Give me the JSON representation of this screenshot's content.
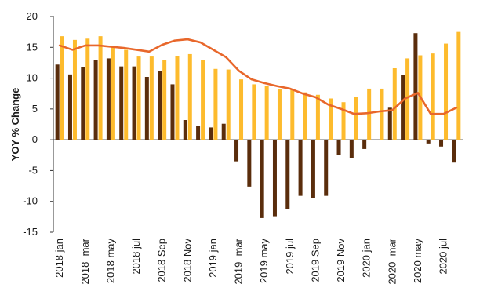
{
  "chart_data": {
    "type": "bar",
    "ylabel": "YOY % Change",
    "xlabel": "",
    "ylim": [
      -15,
      20
    ],
    "yticks": [
      -15,
      -10,
      -5,
      0,
      5,
      10,
      15,
      20
    ],
    "grid": false,
    "legend": "none",
    "categories": [
      "2018 jan",
      "2018 feb",
      "2018 mar",
      "2018 apr",
      "2018 may",
      "2018 jun",
      "2018 jul",
      "2018 aug",
      "2018 Sep",
      "2018 Oct",
      "2018 Nov",
      "2018 Dec",
      "2019 jan",
      "2019 feb",
      "2019 mar",
      "2019 apr",
      "2019 may",
      "2019 jun",
      "2019 jul",
      "2019 aug",
      "2019 Sep",
      "2019 Oct",
      "2019 Nov",
      "2019 Dec",
      "2020 jan",
      "2020 feb",
      "2020 mar",
      "2020 apr",
      "2020 may",
      "2020 jun",
      "2020 jul",
      "2020 aug"
    ],
    "tick_labels": [
      "2018 jan",
      "2018  mar",
      "2018 may",
      "2018 jul",
      "2018 Sep",
      "2018 Nov",
      "2019 jan",
      "2019  mar",
      "2019 may",
      "2019 jul",
      "2019 Sep",
      "2019 Nov",
      "2020 jan",
      "2020  mar",
      "2020 may",
      "2020 jul"
    ],
    "series": [
      {
        "type": "bar",
        "color": "#5a2d0c",
        "values": [
          12.2,
          10.6,
          11.8,
          12.9,
          13.2,
          11.9,
          11.9,
          10.2,
          11.1,
          9.0,
          3.2,
          2.2,
          2.0,
          2.6,
          -3.5,
          -7.6,
          -12.7,
          -12.4,
          -11.2,
          -9.1,
          -9.4,
          -9.1,
          -2.4,
          -3.0,
          -1.5,
          0,
          5.2,
          10.5,
          17.3,
          -0.6,
          -1.1,
          -3.7
        ]
      },
      {
        "type": "bar",
        "color": "#fdbb2d",
        "values": [
          16.8,
          16.2,
          16.4,
          16.8,
          15.0,
          14.6,
          13.5,
          13.5,
          13.0,
          13.6,
          13.9,
          13.0,
          11.5,
          11.4,
          9.8,
          9.0,
          8.7,
          8.2,
          8.2,
          7.7,
          7.3,
          6.7,
          6.1,
          6.9,
          8.3,
          8.3,
          11.6,
          13.2,
          13.7,
          14.0,
          15.6,
          17.5
        ]
      },
      {
        "type": "line",
        "color": "#e8672b",
        "values": [
          15.3,
          14.6,
          15.3,
          15.3,
          15.1,
          14.9,
          14.6,
          14.3,
          15.4,
          16.1,
          16.3,
          15.8,
          14.6,
          13.4,
          11.2,
          9.8,
          9.2,
          8.7,
          8.3,
          7.5,
          6.9,
          5.7,
          5.0,
          4.2,
          4.3,
          4.6,
          4.8,
          6.7,
          7.6,
          4.2,
          4.2,
          5.2
        ]
      }
    ]
  }
}
